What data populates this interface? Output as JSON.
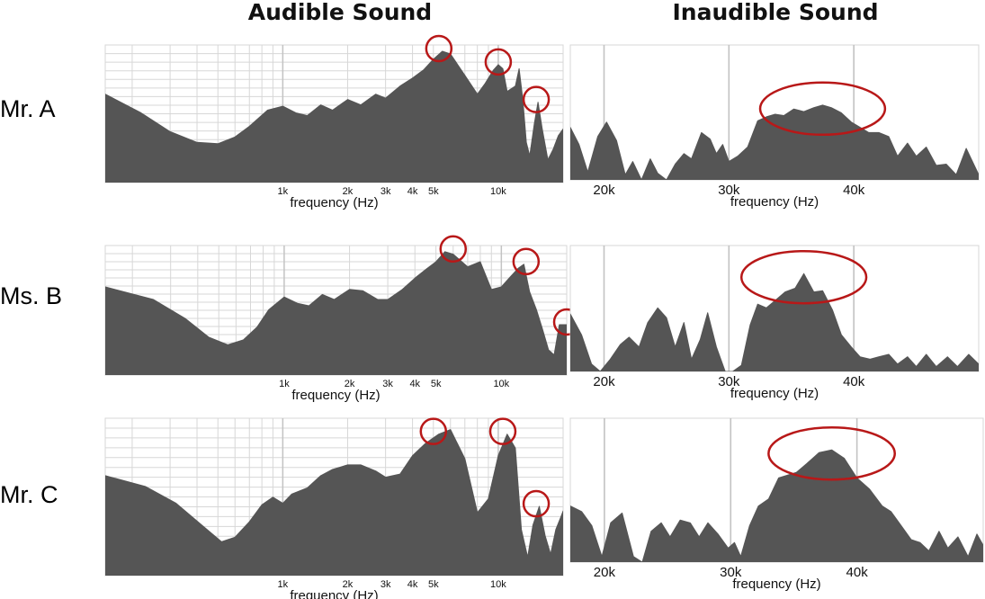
{
  "column_titles": [
    "Audible Sound",
    "Inaudible Sound"
  ],
  "colors": {
    "fill": "#555555",
    "grid_light": "#d7d7d7",
    "grid_major": "#c3c3c3",
    "highlight": "#b81818",
    "plot_bg": "#ffffff"
  },
  "chart_data": [
    {
      "type": "area",
      "row": "Mr. A",
      "panel": "audible",
      "xscale": "log",
      "xlim": [
        150,
        20000
      ],
      "xticks": [
        "1k",
        "2k",
        "3k",
        "4k",
        "5k",
        "10k"
      ],
      "xtick_values": [
        1000,
        2000,
        3000,
        4000,
        5000,
        10000
      ],
      "xlabel": "frequency (Hz)",
      "ylim": [
        0,
        100
      ],
      "x": [
        150,
        220,
        300,
        400,
        500,
        600,
        700,
        850,
        1000,
        1150,
        1300,
        1500,
        1700,
        2000,
        2300,
        2700,
        3000,
        3500,
        4000,
        4500,
        5000,
        5500,
        6000,
        7000,
        8000,
        8700,
        9500,
        10000,
        10500,
        11000,
        12000,
        12500,
        13000,
        13500,
        14000,
        14700,
        15300,
        16000,
        17000,
        18000,
        19000,
        20000
      ],
      "values": [
        66,
        52,
        38,
        30,
        29,
        34,
        42,
        54,
        57,
        52,
        50,
        58,
        54,
        62,
        58,
        66,
        63,
        72,
        78,
        84,
        92,
        98,
        96,
        80,
        66,
        74,
        84,
        88,
        85,
        68,
        72,
        85,
        62,
        30,
        20,
        44,
        60,
        40,
        17,
        25,
        35,
        40
      ],
      "highlights": [
        5300,
        10000,
        15000
      ]
    },
    {
      "type": "area",
      "row": "Mr. A",
      "panel": "inaudible",
      "xlim": [
        17300,
        50000
      ],
      "xticks": [
        "20k",
        "30k",
        "40k"
      ],
      "xtick_values": [
        20000,
        30000,
        40000
      ],
      "xlabel": "frequency (Hz)",
      "ylim": [
        0,
        100
      ],
      "x": [
        17300,
        18000,
        18700,
        19500,
        20200,
        21000,
        21700,
        22300,
        23000,
        23700,
        24300,
        25000,
        25700,
        26400,
        27000,
        27800,
        28500,
        29000,
        29500,
        30000,
        30700,
        31500,
        32300,
        33000,
        33700,
        34400,
        35200,
        36000,
        36800,
        37500,
        38200,
        39000,
        39800,
        40500,
        41200,
        42000,
        42800,
        43500,
        44300,
        45000,
        45800,
        46600,
        47400,
        48200,
        49000,
        50000
      ],
      "values": [
        40,
        27,
        6,
        33,
        44,
        30,
        4,
        14,
        0,
        16,
        5,
        0,
        12,
        20,
        16,
        36,
        31,
        20,
        27,
        14,
        18,
        25,
        45,
        48,
        50,
        49,
        54,
        52,
        55,
        57,
        55,
        51,
        44,
        40,
        36,
        36,
        33,
        18,
        28,
        18,
        25,
        11,
        12,
        4,
        24,
        4
      ],
      "highlight_range": [
        32500,
        42500
      ]
    },
    {
      "type": "area",
      "row": "Ms. B",
      "panel": "audible",
      "xscale": "log",
      "xlim": [
        150,
        20000
      ],
      "xticks": [
        "1k",
        "2k",
        "3k",
        "4k",
        "5k",
        "10k"
      ],
      "xtick_values": [
        1000,
        2000,
        3000,
        4000,
        5000,
        10000
      ],
      "xlabel": "frequency (Hz)",
      "ylim": [
        0,
        100
      ],
      "x": [
        150,
        250,
        350,
        450,
        550,
        650,
        750,
        850,
        1000,
        1150,
        1300,
        1500,
        1700,
        2000,
        2300,
        2700,
        3000,
        3500,
        4000,
        4500,
        5000,
        5500,
        6000,
        7000,
        8000,
        9000,
        10000,
        11000,
        12000,
        12700,
        13500,
        14500,
        15500,
        16500,
        17500,
        18500,
        19500,
        20000
      ],
      "values": [
        70,
        60,
        45,
        30,
        24,
        28,
        38,
        52,
        62,
        57,
        55,
        64,
        60,
        68,
        67,
        60,
        60,
        68,
        77,
        84,
        90,
        98,
        96,
        86,
        90,
        68,
        70,
        78,
        85,
        88,
        66,
        52,
        36,
        20,
        16,
        40,
        40,
        40
      ],
      "highlights": [
        6000,
        13000,
        20000
      ]
    },
    {
      "type": "area",
      "row": "Ms. B",
      "panel": "inaudible",
      "xlim": [
        17300,
        50000
      ],
      "xticks": [
        "20k",
        "30k",
        "40k"
      ],
      "xtick_values": [
        20000,
        30000,
        40000
      ],
      "xlabel": "frequency (Hz)",
      "ylim": [
        0,
        100
      ],
      "x": [
        17300,
        18200,
        19000,
        19700,
        20500,
        21300,
        22000,
        22800,
        23500,
        24300,
        25000,
        25700,
        26400,
        27000,
        27700,
        28300,
        29000,
        29700,
        30300,
        31000,
        31700,
        32300,
        33000,
        33700,
        34500,
        35300,
        36000,
        36800,
        37500,
        38300,
        39000,
        39800,
        40500,
        41300,
        42000,
        42800,
        43500,
        44300,
        45000,
        45800,
        46600,
        47500,
        48300,
        49200,
        50000
      ],
      "values": [
        47,
        30,
        6,
        0,
        10,
        22,
        28,
        20,
        40,
        52,
        44,
        20,
        40,
        10,
        26,
        48,
        20,
        0,
        0,
        5,
        38,
        55,
        52,
        58,
        65,
        68,
        80,
        65,
        66,
        50,
        30,
        20,
        12,
        10,
        12,
        14,
        6,
        12,
        4,
        14,
        4,
        12,
        4,
        14,
        6
      ],
      "highlight_range": [
        31000,
        41000
      ]
    },
    {
      "type": "area",
      "row": "Mr. C",
      "panel": "audible",
      "xscale": "log",
      "xlim": [
        150,
        20000
      ],
      "xticks": [
        "1k",
        "2k",
        "3k",
        "4k",
        "5k",
        "10k"
      ],
      "xtick_values": [
        1000,
        2000,
        3000,
        4000,
        5000,
        10000
      ],
      "xlabel": "frequency (Hz)",
      "ylim": [
        0,
        100
      ],
      "x": [
        150,
        230,
        320,
        420,
        520,
        600,
        700,
        800,
        900,
        1000,
        1100,
        1300,
        1500,
        1700,
        2000,
        2300,
        2700,
        3000,
        3500,
        4000,
        4600,
        5300,
        6000,
        7000,
        8000,
        9000,
        10000,
        11000,
        12000,
        12800,
        13700,
        14500,
        15500,
        16500,
        17500,
        18500,
        19500,
        20000
      ],
      "values": [
        65,
        58,
        47,
        33,
        22,
        25,
        35,
        46,
        51,
        47,
        53,
        57,
        65,
        69,
        72,
        72,
        68,
        64,
        66,
        78,
        86,
        92,
        95,
        76,
        41,
        50,
        78,
        92,
        83,
        30,
        12,
        33,
        45,
        26,
        14,
        30,
        38,
        42
      ],
      "highlights": [
        5000,
        10500,
        15000
      ]
    },
    {
      "type": "area",
      "row": "Mr. C",
      "panel": "inaudible",
      "xlim": [
        17300,
        50000
      ],
      "xticks": [
        "20k",
        "30k",
        "40k"
      ],
      "xtick_values": [
        20000,
        30000,
        40000
      ],
      "xlabel": "frequency (Hz)",
      "ylim": [
        0,
        100
      ],
      "x": [
        17300,
        18200,
        19000,
        19800,
        20500,
        21400,
        22300,
        23000,
        23700,
        24500,
        25200,
        26000,
        26800,
        27500,
        28200,
        29000,
        29800,
        30300,
        30800,
        31500,
        32200,
        33000,
        33800,
        34500,
        35200,
        36000,
        37000,
        38000,
        39000,
        40000,
        41000,
        42000,
        42700,
        43500,
        44300,
        45000,
        45700,
        46500,
        47200,
        48000,
        48800,
        49500,
        50000
      ],
      "values": [
        40,
        36,
        26,
        4,
        28,
        35,
        4,
        0,
        22,
        28,
        18,
        30,
        28,
        18,
        28,
        20,
        10,
        14,
        4,
        26,
        40,
        45,
        60,
        62,
        64,
        70,
        78,
        80,
        74,
        60,
        52,
        40,
        36,
        26,
        16,
        14,
        8,
        22,
        10,
        18,
        4,
        20,
        12
      ],
      "highlight_range": [
        33000,
        43000
      ]
    }
  ],
  "rows": [
    {
      "label": "Mr. A"
    },
    {
      "label": "Ms. B"
    },
    {
      "label": "Mr. C"
    }
  ]
}
